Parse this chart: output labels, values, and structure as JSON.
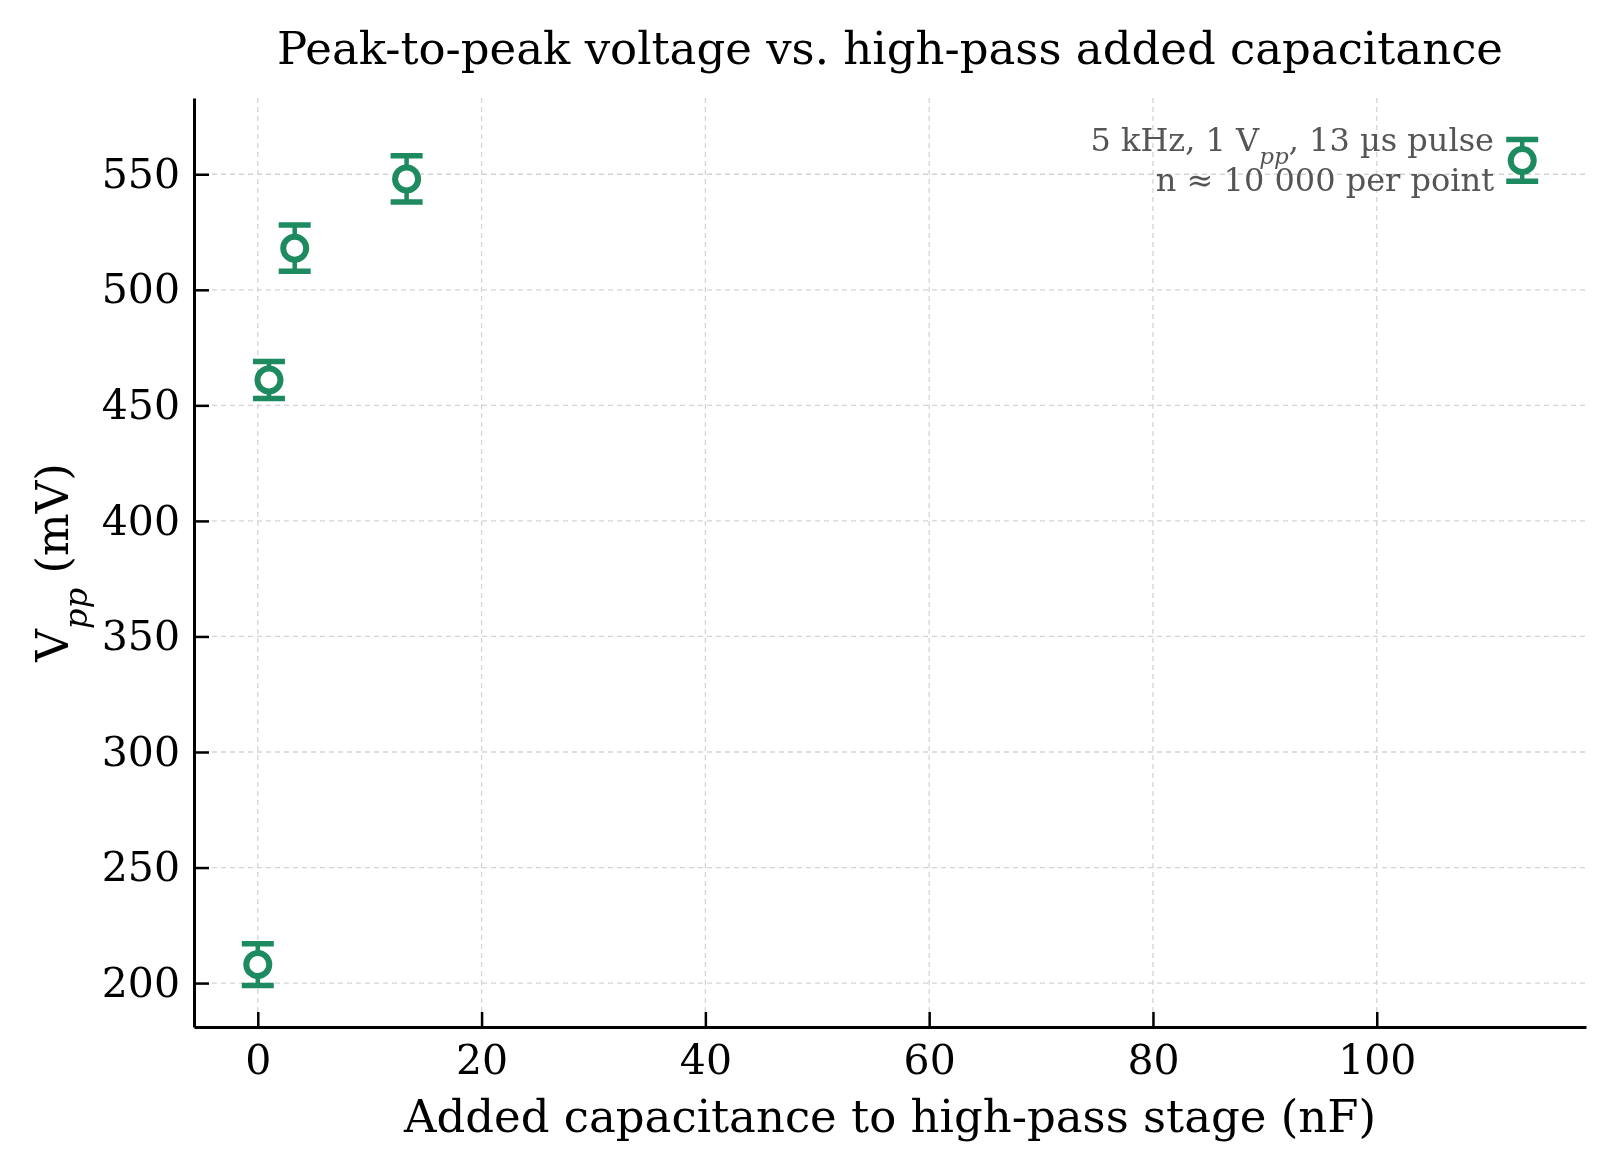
{
  "chart_data": {
    "type": "scatter",
    "title": "Peak-to-peak voltage vs. high-pass added capacitance",
    "xlabel": "Added capacitance to high-pass stage (nF)",
    "ylabel": "V$_{pp}$ (mV)",
    "annotations": [
      "5 kHz, 1 V$_{pp}$, 13 µs pulse",
      "n ≈ 10 000 per point"
    ],
    "x": [
      0,
      1,
      3.3,
      13.3,
      113
    ],
    "series": [
      {
        "color": "#1d8a5f",
        "values": [
          208,
          461,
          518,
          548,
          556
        ],
        "errors": [
          9,
          8,
          10,
          10,
          9
        ]
      }
    ],
    "xlim": [
      -5.7,
      118.7
    ],
    "ylim": [
      181,
      583
    ],
    "xticks": [
      0,
      20,
      40,
      60,
      80,
      100
    ],
    "yticks": [
      200,
      250,
      300,
      350,
      400,
      450,
      500,
      550
    ],
    "grid": true,
    "marker": "circle"
  }
}
